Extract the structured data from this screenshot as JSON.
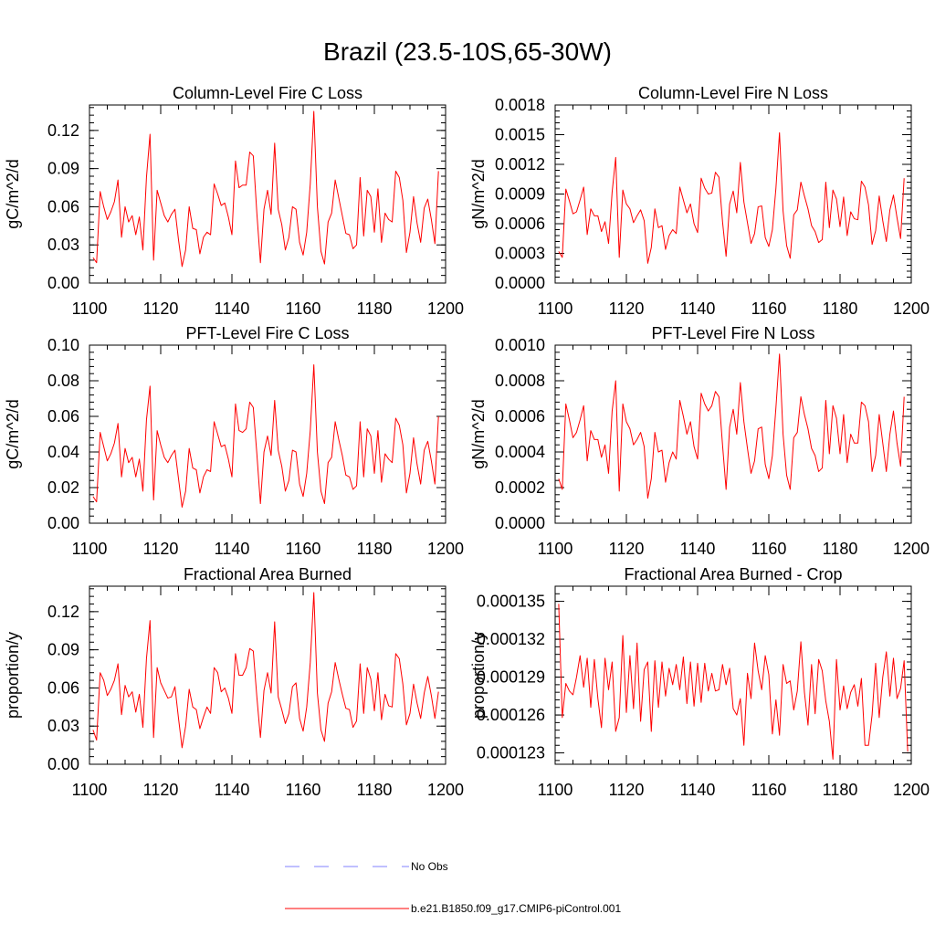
{
  "figure_title": "Brazil (23.5-10S,65-30W)",
  "legend": [
    {
      "label": "No Obs",
      "color": "#8080ff",
      "style": "dashed"
    },
    {
      "label": "b.e21.B1850.f09_g17.CMIP6-piControl.001",
      "color": "#ff0000",
      "style": "solid"
    }
  ],
  "chart_data": [
    {
      "type": "line",
      "title": "Column-Level Fire C Loss",
      "xlabel": "",
      "ylabel": "gC/m^2/d",
      "xlim": [
        1100,
        1200
      ],
      "ylim": [
        0,
        0.14
      ],
      "x_ticks": [
        1100,
        1120,
        1140,
        1160,
        1180,
        1200
      ],
      "x_tick_labels": [
        "1100",
        "1120",
        "1140",
        "1160",
        "1180",
        "1200"
      ],
      "y_ticks": [
        0,
        0.03,
        0.06,
        0.09,
        0.12
      ],
      "y_tick_labels": [
        "0.00",
        "0.03",
        "0.06",
        "0.09",
        "0.12"
      ],
      "series": [
        {
          "name": "b.e21.B1850.f09_g17.CMIP6-piControl.001",
          "color": "#ff0000",
          "x_start": 1101,
          "values": [
            0.02,
            0.016,
            0.072,
            0.06,
            0.05,
            0.056,
            0.064,
            0.081,
            0.036,
            0.06,
            0.048,
            0.053,
            0.038,
            0.052,
            0.026,
            0.083,
            0.117,
            0.018,
            0.073,
            0.063,
            0.053,
            0.048,
            0.054,
            0.058,
            0.034,
            0.013,
            0.026,
            0.06,
            0.043,
            0.042,
            0.023,
            0.036,
            0.04,
            0.038,
            0.078,
            0.07,
            0.061,
            0.063,
            0.052,
            0.038,
            0.096,
            0.075,
            0.077,
            0.077,
            0.103,
            0.1,
            0.055,
            0.016,
            0.058,
            0.073,
            0.054,
            0.11,
            0.058,
            0.046,
            0.026,
            0.036,
            0.06,
            0.058,
            0.032,
            0.022,
            0.04,
            0.078,
            0.135,
            0.06,
            0.025,
            0.015,
            0.048,
            0.055,
            0.081,
            0.067,
            0.053,
            0.039,
            0.038,
            0.027,
            0.03,
            0.083,
            0.037,
            0.073,
            0.068,
            0.04,
            0.074,
            0.032,
            0.055,
            0.05,
            0.048,
            0.088,
            0.083,
            0.065,
            0.024,
            0.04,
            0.068,
            0.047,
            0.032,
            0.059,
            0.066,
            0.05,
            0.031,
            0.088
          ]
        }
      ]
    },
    {
      "type": "line",
      "title": "Column-Level Fire N Loss",
      "xlabel": "",
      "ylabel": "gN/m^2/d",
      "xlim": [
        1100,
        1200
      ],
      "ylim": [
        0,
        0.0018
      ],
      "x_ticks": [
        1100,
        1120,
        1140,
        1160,
        1180,
        1200
      ],
      "x_tick_labels": [
        "1100",
        "1120",
        "1140",
        "1160",
        "1180",
        "1200"
      ],
      "y_ticks": [
        0,
        0.0003,
        0.0006,
        0.0009,
        0.0012,
        0.0015,
        0.0018
      ],
      "y_tick_labels": [
        "0.0000",
        "0.0003",
        "0.0006",
        "0.0009",
        "0.0012",
        "0.0015",
        "0.0018"
      ],
      "series": [
        {
          "name": "b.e21.B1850.f09_g17.CMIP6-piControl.001",
          "color": "#ff0000",
          "x_start": 1101,
          "values": [
            0.00032,
            0.00026,
            0.00095,
            0.00083,
            0.0007,
            0.00072,
            0.00084,
            0.00097,
            0.00049,
            0.00075,
            0.00068,
            0.00068,
            0.00052,
            0.00062,
            0.0004,
            0.00092,
            0.00127,
            0.00026,
            0.00094,
            0.0008,
            0.00075,
            0.00061,
            0.00068,
            0.00074,
            0.00063,
            0.0002,
            0.00036,
            0.00075,
            0.00056,
            0.00058,
            0.00034,
            0.00048,
            0.00054,
            0.0005,
            0.00097,
            0.00084,
            0.00071,
            0.0008,
            0.0006,
            0.00051,
            0.00106,
            0.00096,
            0.0009,
            0.00091,
            0.00112,
            0.00107,
            0.00062,
            0.00027,
            0.0008,
            0.00093,
            0.00071,
            0.00122,
            0.00082,
            0.00061,
            0.0004,
            0.0005,
            0.00077,
            0.00078,
            0.00046,
            0.00037,
            0.00054,
            0.00096,
            0.00152,
            0.00073,
            0.00038,
            0.00025,
            0.00069,
            0.00074,
            0.00102,
            0.00088,
            0.00075,
            0.00058,
            0.00052,
            0.00041,
            0.00044,
            0.00102,
            0.00056,
            0.00094,
            0.00085,
            0.00057,
            0.00087,
            0.00048,
            0.00072,
            0.00065,
            0.00064,
            0.00103,
            0.00097,
            0.00079,
            0.00039,
            0.00053,
            0.00088,
            0.00063,
            0.00042,
            0.00074,
            0.00089,
            0.00066,
            0.00045,
            0.00106
          ]
        }
      ]
    },
    {
      "type": "line",
      "title": "PFT-Level Fire C Loss",
      "xlabel": "",
      "ylabel": "gC/m^2/d",
      "xlim": [
        1100,
        1200
      ],
      "ylim": [
        0,
        0.1
      ],
      "x_ticks": [
        1100,
        1120,
        1140,
        1160,
        1180,
        1200
      ],
      "x_tick_labels": [
        "1100",
        "1120",
        "1140",
        "1160",
        "1180",
        "1200"
      ],
      "y_ticks": [
        0,
        0.02,
        0.04,
        0.06,
        0.08,
        0.1
      ],
      "y_tick_labels": [
        "0.00",
        "0.02",
        "0.04",
        "0.06",
        "0.08",
        "0.10"
      ],
      "series": [
        {
          "name": "b.e21.B1850.f09_g17.CMIP6-piControl.001",
          "color": "#ff0000",
          "x_start": 1101,
          "values": [
            0.015,
            0.012,
            0.051,
            0.043,
            0.035,
            0.039,
            0.045,
            0.056,
            0.026,
            0.042,
            0.034,
            0.037,
            0.026,
            0.036,
            0.018,
            0.058,
            0.077,
            0.013,
            0.052,
            0.044,
            0.037,
            0.034,
            0.038,
            0.041,
            0.025,
            0.009,
            0.018,
            0.042,
            0.031,
            0.03,
            0.017,
            0.026,
            0.03,
            0.029,
            0.057,
            0.05,
            0.043,
            0.044,
            0.036,
            0.026,
            0.067,
            0.052,
            0.051,
            0.053,
            0.068,
            0.065,
            0.039,
            0.011,
            0.04,
            0.049,
            0.038,
            0.069,
            0.041,
            0.032,
            0.018,
            0.024,
            0.041,
            0.04,
            0.022,
            0.015,
            0.028,
            0.052,
            0.089,
            0.04,
            0.018,
            0.011,
            0.034,
            0.037,
            0.057,
            0.047,
            0.038,
            0.027,
            0.026,
            0.019,
            0.021,
            0.057,
            0.026,
            0.053,
            0.049,
            0.028,
            0.052,
            0.023,
            0.039,
            0.036,
            0.034,
            0.059,
            0.055,
            0.044,
            0.017,
            0.028,
            0.048,
            0.033,
            0.022,
            0.041,
            0.046,
            0.035,
            0.022,
            0.06
          ]
        }
      ]
    },
    {
      "type": "line",
      "title": "PFT-Level Fire N Loss",
      "xlabel": "",
      "ylabel": "gN/m^2/d",
      "xlim": [
        1100,
        1200
      ],
      "ylim": [
        0,
        0.001
      ],
      "x_ticks": [
        1100,
        1120,
        1140,
        1160,
        1180,
        1200
      ],
      "x_tick_labels": [
        "1100",
        "1120",
        "1140",
        "1160",
        "1180",
        "1200"
      ],
      "y_ticks": [
        0,
        0.0002,
        0.0004,
        0.0006,
        0.0008,
        0.001
      ],
      "y_tick_labels": [
        "0.0000",
        "0.0002",
        "0.0004",
        "0.0006",
        "0.0008",
        "0.0010"
      ],
      "series": [
        {
          "name": "b.e21.B1850.f09_g17.CMIP6-piControl.001",
          "color": "#ff0000",
          "x_start": 1101,
          "values": [
            0.00025,
            0.00019,
            0.00067,
            0.00058,
            0.00048,
            0.00051,
            0.00058,
            0.00066,
            0.00035,
            0.00052,
            0.00047,
            0.00047,
            0.00037,
            0.00044,
            0.00028,
            0.00063,
            0.0008,
            0.00018,
            0.00067,
            0.00057,
            0.00053,
            0.00044,
            0.00047,
            0.00051,
            0.00043,
            0.00014,
            0.00025,
            0.00051,
            0.0004,
            0.00041,
            0.00023,
            0.00034,
            0.0004,
            0.00036,
            0.00069,
            0.0006,
            0.0005,
            0.00057,
            0.00043,
            0.00036,
            0.00073,
            0.00067,
            0.00063,
            0.00066,
            0.00074,
            0.00071,
            0.00044,
            0.00019,
            0.00054,
            0.00064,
            0.0005,
            0.00079,
            0.00057,
            0.00042,
            0.00028,
            0.00035,
            0.00053,
            0.00054,
            0.00033,
            0.00025,
            0.00038,
            0.00065,
            0.00095,
            0.0005,
            0.00027,
            0.00019,
            0.00048,
            0.00051,
            0.00071,
            0.00061,
            0.00053,
            0.00042,
            0.00038,
            0.00029,
            0.00031,
            0.00069,
            0.00039,
            0.00066,
            0.00059,
            0.00039,
            0.00061,
            0.00034,
            0.0005,
            0.00045,
            0.00045,
            0.00068,
            0.00066,
            0.00057,
            0.00029,
            0.00038,
            0.00061,
            0.00045,
            0.00029,
            0.0005,
            0.00063,
            0.00045,
            0.00032,
            0.00071
          ]
        }
      ]
    },
    {
      "type": "line",
      "title": "Fractional Area Burned",
      "xlabel": "",
      "ylabel": "proportion/y",
      "xlim": [
        1100,
        1200
      ],
      "ylim": [
        0,
        0.14
      ],
      "x_ticks": [
        1100,
        1120,
        1140,
        1160,
        1180,
        1200
      ],
      "x_tick_labels": [
        "1100",
        "1120",
        "1140",
        "1160",
        "1180",
        "1200"
      ],
      "y_ticks": [
        0,
        0.03,
        0.06,
        0.09,
        0.12
      ],
      "y_tick_labels": [
        "0.00",
        "0.03",
        "0.06",
        "0.09",
        "0.12"
      ],
      "series": [
        {
          "name": "b.e21.B1850.f09_g17.CMIP6-piControl.001",
          "color": "#ff0000",
          "x_start": 1101,
          "values": [
            0.027,
            0.019,
            0.072,
            0.066,
            0.054,
            0.059,
            0.066,
            0.079,
            0.039,
            0.062,
            0.053,
            0.057,
            0.041,
            0.055,
            0.029,
            0.083,
            0.113,
            0.021,
            0.076,
            0.064,
            0.058,
            0.052,
            0.053,
            0.061,
            0.036,
            0.013,
            0.03,
            0.059,
            0.045,
            0.043,
            0.028,
            0.037,
            0.045,
            0.04,
            0.076,
            0.072,
            0.057,
            0.06,
            0.052,
            0.04,
            0.087,
            0.07,
            0.07,
            0.076,
            0.091,
            0.089,
            0.053,
            0.021,
            0.058,
            0.072,
            0.056,
            0.112,
            0.053,
            0.043,
            0.032,
            0.04,
            0.061,
            0.064,
            0.036,
            0.026,
            0.045,
            0.08,
            0.135,
            0.056,
            0.027,
            0.018,
            0.048,
            0.057,
            0.08,
            0.067,
            0.055,
            0.044,
            0.043,
            0.029,
            0.034,
            0.079,
            0.04,
            0.076,
            0.067,
            0.042,
            0.072,
            0.035,
            0.055,
            0.046,
            0.045,
            0.087,
            0.083,
            0.063,
            0.031,
            0.04,
            0.063,
            0.048,
            0.036,
            0.056,
            0.069,
            0.054,
            0.036,
            0.057
          ]
        }
      ]
    },
    {
      "type": "line",
      "title": "Fractional Area Burned - Crop",
      "xlabel": "",
      "ylabel": "proportion/y",
      "xlim": [
        1100,
        1200
      ],
      "ylim": [
        0.0001221,
        0.0001362
      ],
      "x_ticks": [
        1100,
        1120,
        1140,
        1160,
        1180,
        1200
      ],
      "x_tick_labels": [
        "1100",
        "1120",
        "1140",
        "1160",
        "1180",
        "1200"
      ],
      "y_ticks": [
        0.000123,
        0.000126,
        0.000129,
        0.000132,
        0.000135
      ],
      "y_tick_labels": [
        "0.000123",
        "0.000126",
        "0.000129",
        "0.000132",
        "0.000135"
      ],
      "series": [
        {
          "name": "b.e21.B1850.f09_g17.CMIP6-piControl.001",
          "color": "#ff0000",
          "x_start": 1101,
          "values": [
            0.0001348,
            0.0001258,
            0.0001285,
            0.0001279,
            0.0001276,
            0.000129,
            0.0001307,
            0.0001282,
            0.0001305,
            0.0001266,
            0.0001304,
            0.0001273,
            0.000125,
            0.0001305,
            0.000128,
            0.0001302,
            0.0001247,
            0.0001258,
            0.0001323,
            0.0001262,
            0.0001307,
            0.0001265,
            0.0001317,
            0.0001255,
            0.0001296,
            0.0001302,
            0.0001247,
            0.0001303,
            0.0001266,
            0.0001302,
            0.0001275,
            0.0001297,
            0.0001284,
            0.00013,
            0.000128,
            0.0001306,
            0.0001269,
            0.0001302,
            0.0001267,
            0.0001301,
            0.000127,
            0.0001301,
            0.0001279,
            0.0001293,
            0.0001279,
            0.000128,
            0.00013,
            0.0001284,
            0.0001297,
            0.0001265,
            0.000126,
            0.0001273,
            0.0001236,
            0.0001293,
            0.0001273,
            0.0001317,
            0.0001295,
            0.000128,
            0.0001307,
            0.0001292,
            0.0001245,
            0.0001272,
            0.0001244,
            0.00013,
            0.0001285,
            0.0001287,
            0.0001264,
            0.0001279,
            0.0001318,
            0.0001278,
            0.0001252,
            0.00013,
            0.0001261,
            0.0001304,
            0.0001295,
            0.0001271,
            0.0001255,
            0.0001225,
            0.0001304,
            0.0001264,
            0.0001283,
            0.0001265,
            0.0001278,
            0.0001284,
            0.0001267,
            0.0001289,
            0.0001236,
            0.0001236,
            0.000126,
            0.0001301,
            0.0001258,
            0.000129,
            0.000131,
            0.0001275,
            0.0001305,
            0.0001273,
            0.0001281,
            0.0001303,
            0.0001231
          ]
        }
      ]
    }
  ]
}
